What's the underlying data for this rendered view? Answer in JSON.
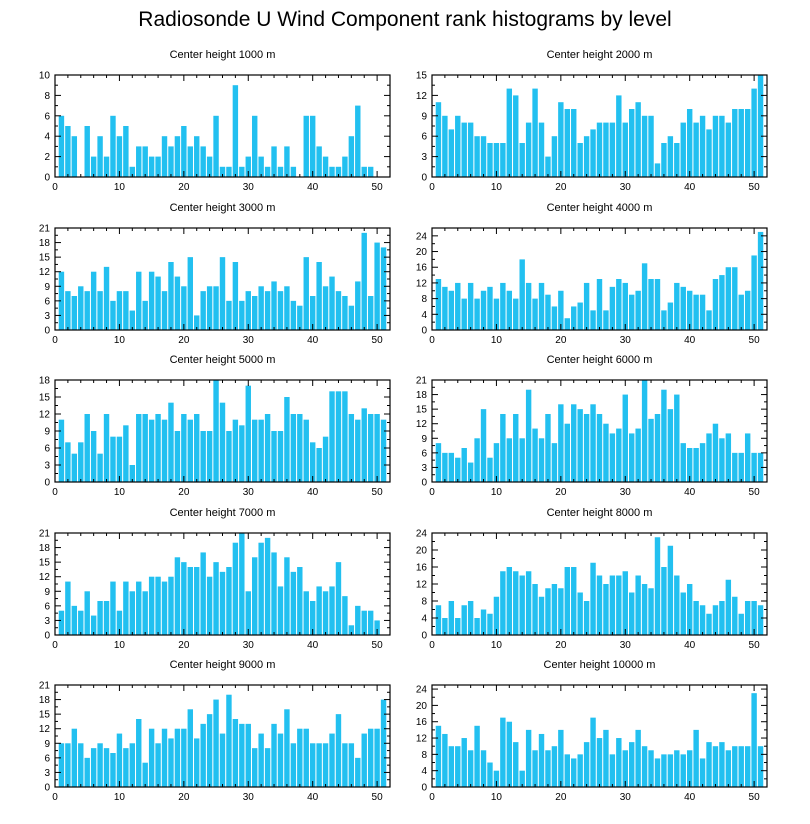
{
  "title": "Radiosonde U Wind Component rank histograms by level",
  "colors": {
    "bar": "#22c0f0",
    "axis": "#000000",
    "background": "#ffffff"
  },
  "chart_data": [
    {
      "type": "bar",
      "title": "Center height 1000 m",
      "xlim": [
        0,
        52
      ],
      "ylim": [
        0,
        10
      ],
      "xticks": [
        0,
        10,
        20,
        30,
        40,
        50
      ],
      "yticks": [
        0,
        2,
        4,
        6,
        8,
        10
      ],
      "values": [
        6,
        5,
        4,
        0,
        5,
        2,
        4,
        2,
        6,
        4,
        5,
        1,
        3,
        3,
        2,
        2,
        4,
        3,
        4,
        5,
        3,
        4,
        3,
        2,
        6,
        1,
        1,
        9,
        1,
        2,
        6,
        2,
        1,
        3,
        1,
        3,
        1,
        0,
        6,
        6,
        3,
        2,
        1,
        1,
        2,
        4,
        7,
        1,
        1
      ]
    },
    {
      "type": "bar",
      "title": "Center height 2000 m",
      "xlim": [
        0,
        52
      ],
      "ylim": [
        0,
        15
      ],
      "xticks": [
        0,
        10,
        20,
        30,
        40,
        50
      ],
      "yticks": [
        0,
        3,
        6,
        9,
        12,
        15
      ],
      "values": [
        11,
        9,
        7,
        9,
        8,
        8,
        6,
        6,
        5,
        5,
        5,
        13,
        12,
        5,
        8,
        13,
        8,
        3,
        6,
        11,
        10,
        10,
        5,
        6,
        7,
        8,
        8,
        8,
        12,
        8,
        10,
        11,
        9,
        9,
        2,
        5,
        6,
        5,
        8,
        10,
        8,
        9,
        7,
        9,
        9,
        8,
        10,
        10,
        10,
        13,
        15
      ]
    },
    {
      "type": "bar",
      "title": "Center height 3000 m",
      "xlim": [
        0,
        52
      ],
      "ylim": [
        0,
        21
      ],
      "xticks": [
        0,
        10,
        20,
        30,
        40,
        50
      ],
      "yticks": [
        0,
        3,
        6,
        9,
        12,
        15,
        18,
        21
      ],
      "values": [
        12,
        8,
        7,
        9,
        8,
        12,
        8,
        13,
        6,
        8,
        8,
        4,
        12,
        6,
        12,
        11,
        8,
        14,
        11,
        9,
        15,
        3,
        8,
        9,
        9,
        15,
        6,
        14,
        6,
        8,
        7,
        9,
        8,
        10,
        8,
        9,
        6,
        5,
        15,
        7,
        14,
        9,
        11,
        8,
        7,
        5,
        10,
        20,
        7,
        18,
        17
      ]
    },
    {
      "type": "bar",
      "title": "Center height 4000 m",
      "xlim": [
        0,
        52
      ],
      "ylim": [
        0,
        26
      ],
      "xticks": [
        0,
        10,
        20,
        30,
        40,
        50
      ],
      "yticks": [
        0,
        4,
        8,
        12,
        16,
        20,
        24
      ],
      "values": [
        13,
        11,
        10,
        12,
        8,
        12,
        8,
        10,
        11,
        8,
        12,
        10,
        8,
        18,
        12,
        8,
        12,
        9,
        6,
        10,
        3,
        6,
        7,
        12,
        5,
        13,
        5,
        11,
        13,
        12,
        9,
        10,
        17,
        13,
        13,
        5,
        7,
        12,
        11,
        10,
        9,
        9,
        5,
        13,
        14,
        16,
        16,
        9,
        10,
        19,
        25
      ]
    },
    {
      "type": "bar",
      "title": "Center height 5000 m",
      "xlim": [
        0,
        52
      ],
      "ylim": [
        0,
        18
      ],
      "xticks": [
        0,
        10,
        20,
        30,
        40,
        50
      ],
      "yticks": [
        0,
        3,
        6,
        9,
        12,
        15,
        18
      ],
      "values": [
        11,
        7,
        5,
        7,
        12,
        9,
        5,
        12,
        8,
        8,
        10,
        3,
        12,
        12,
        11,
        12,
        11,
        14,
        9,
        12,
        11,
        12,
        9,
        9,
        18,
        14,
        9,
        11,
        10,
        17,
        11,
        11,
        12,
        9,
        9,
        15,
        12,
        12,
        11,
        7,
        6,
        8,
        16,
        16,
        16,
        12,
        11,
        13,
        12,
        12,
        11
      ]
    },
    {
      "type": "bar",
      "title": "Center height 6000 m",
      "xlim": [
        0,
        52
      ],
      "ylim": [
        0,
        21
      ],
      "xticks": [
        0,
        10,
        20,
        30,
        40,
        50
      ],
      "yticks": [
        0,
        3,
        6,
        9,
        12,
        15,
        18,
        21
      ],
      "values": [
        8,
        6,
        6,
        5,
        7,
        4,
        9,
        15,
        5,
        8,
        14,
        9,
        14,
        9,
        19,
        11,
        9,
        14,
        8,
        16,
        12,
        16,
        15,
        14,
        16,
        14,
        12,
        10,
        11,
        18,
        10,
        11,
        21,
        13,
        14,
        19,
        15,
        18,
        8,
        7,
        7,
        8,
        10,
        12,
        9,
        10,
        6,
        6,
        10,
        6,
        6
      ]
    },
    {
      "type": "bar",
      "title": "Center height 7000 m",
      "xlim": [
        0,
        52
      ],
      "ylim": [
        0,
        21
      ],
      "xticks": [
        0,
        10,
        20,
        30,
        40,
        50
      ],
      "yticks": [
        0,
        3,
        6,
        9,
        12,
        15,
        18,
        21
      ],
      "values": [
        5,
        11,
        6,
        5,
        9,
        4,
        7,
        7,
        11,
        5,
        11,
        9,
        11,
        9,
        12,
        12,
        11,
        12,
        16,
        15,
        14,
        14,
        17,
        12,
        15,
        13,
        14,
        19,
        21,
        9,
        16,
        19,
        20,
        17,
        10,
        16,
        13,
        14,
        9,
        7,
        10,
        9,
        10,
        15,
        8,
        2,
        6,
        5,
        5,
        3
      ]
    },
    {
      "type": "bar",
      "title": "Center height 8000 m",
      "xlim": [
        0,
        52
      ],
      "ylim": [
        0,
        24
      ],
      "xticks": [
        0,
        10,
        20,
        30,
        40,
        50
      ],
      "yticks": [
        0,
        4,
        8,
        12,
        16,
        20,
        24
      ],
      "values": [
        7,
        4,
        8,
        4,
        7,
        8,
        4,
        6,
        5,
        9,
        15,
        16,
        15,
        14,
        15,
        12,
        9,
        11,
        12,
        11,
        16,
        16,
        10,
        8,
        17,
        14,
        12,
        14,
        14,
        15,
        10,
        14,
        12,
        11,
        23,
        16,
        21,
        14,
        10,
        12,
        8,
        7,
        5,
        7,
        8,
        13,
        9,
        5,
        8,
        8,
        7
      ]
    },
    {
      "type": "bar",
      "title": "Center height 9000 m",
      "xlim": [
        0,
        52
      ],
      "ylim": [
        0,
        21
      ],
      "xticks": [
        0,
        10,
        20,
        30,
        40,
        50
      ],
      "yticks": [
        0,
        3,
        6,
        9,
        12,
        15,
        18,
        21
      ],
      "values": [
        9,
        9,
        12,
        9,
        6,
        8,
        9,
        8,
        7,
        11,
        8,
        9,
        14,
        5,
        12,
        9,
        12,
        10,
        12,
        12,
        16,
        10,
        13,
        15,
        18,
        11,
        19,
        14,
        13,
        13,
        8,
        11,
        8,
        13,
        11,
        16,
        9,
        12,
        12,
        9,
        9,
        9,
        11,
        15,
        9,
        9,
        6,
        11,
        12,
        12,
        18
      ]
    },
    {
      "type": "bar",
      "title": "Center height 10000 m",
      "xlim": [
        0,
        52
      ],
      "ylim": [
        0,
        25
      ],
      "xticks": [
        0,
        10,
        20,
        30,
        40,
        50
      ],
      "yticks": [
        0,
        4,
        8,
        12,
        16,
        20,
        24
      ],
      "values": [
        15,
        13,
        10,
        10,
        12,
        9,
        15,
        9,
        6,
        4,
        17,
        16,
        11,
        4,
        14,
        9,
        13,
        9,
        10,
        14,
        8,
        7,
        8,
        11,
        17,
        12,
        14,
        8,
        12,
        9,
        11,
        14,
        10,
        9,
        7,
        8,
        8,
        9,
        8,
        9,
        14,
        7,
        11,
        10,
        11,
        9,
        10,
        10,
        10,
        23,
        10
      ]
    }
  ]
}
